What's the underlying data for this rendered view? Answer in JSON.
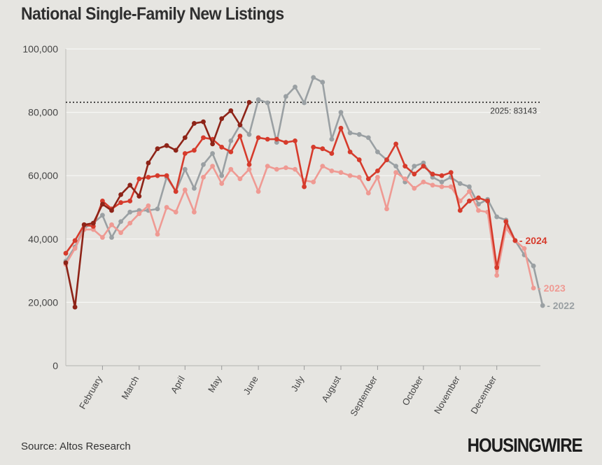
{
  "title": "National Single-Family New Listings",
  "source": "Source: Altos Research",
  "brand": "HOUSINGWIRE",
  "chart_data": {
    "type": "line",
    "title": "National Single-Family New Listings",
    "xlabel": "",
    "ylabel": "",
    "ylim": [
      0,
      100000
    ],
    "yticks": [
      0,
      20000,
      40000,
      60000,
      80000,
      100000
    ],
    "ytick_labels": [
      "0",
      "20,000",
      "40,000",
      "60,000",
      "80,000",
      "100,000"
    ],
    "week_range": [
      1,
      52
    ],
    "month_ticks": [
      {
        "label": "February",
        "week": 5
      },
      {
        "label": "March",
        "week": 9
      },
      {
        "label": "April",
        "week": 14
      },
      {
        "label": "May",
        "week": 18
      },
      {
        "label": "June",
        "week": 22
      },
      {
        "label": "July",
        "week": 27
      },
      {
        "label": "August",
        "week": 31
      },
      {
        "label": "September",
        "week": 35
      },
      {
        "label": "October",
        "week": 40
      },
      {
        "label": "November",
        "week": 44
      },
      {
        "label": "December",
        "week": 48
      }
    ],
    "grid": true,
    "reference_line": {
      "value": 83143,
      "label": "2025: 83143",
      "style": "dotted"
    },
    "series": [
      {
        "name": "2022",
        "color": "#9aa0a3",
        "label": "2022",
        "values": [
          33000,
          37500,
          43500,
          45000,
          47500,
          40500,
          45500,
          48500,
          49000,
          49000,
          49500,
          59500,
          55000,
          62000,
          56000,
          63500,
          67000,
          60000,
          71000,
          76000,
          73000,
          84000,
          83000,
          70500,
          85000,
          88000,
          83000,
          91000,
          89500,
          71500,
          80000,
          73500,
          73000,
          72000,
          67500,
          65000,
          63000,
          58000,
          63000,
          64000,
          59500,
          58000,
          59500,
          57500,
          56500,
          51000,
          52500,
          47000,
          46000,
          39500,
          35000,
          31500,
          19000
        ]
      },
      {
        "name": "2023",
        "color": "#ef9a93",
        "label": "2023",
        "values": [
          32000,
          37000,
          43000,
          43000,
          40500,
          44500,
          42000,
          45000,
          48000,
          50500,
          41500,
          50000,
          48500,
          55500,
          48500,
          59500,
          63000,
          57500,
          62000,
          59000,
          62000,
          55000,
          63000,
          62000,
          62500,
          62000,
          58500,
          58000,
          63000,
          61500,
          61000,
          60000,
          59500,
          54500,
          59500,
          49500,
          61000,
          59000,
          56000,
          58000,
          57000,
          56500,
          56500,
          52000,
          55000,
          49000,
          48500,
          28500,
          43500,
          39500,
          37000,
          24500
        ]
      },
      {
        "name": "2024",
        "color": "#d63b2c",
        "label": "2024",
        "values": [
          35500,
          39500,
          44500,
          44000,
          52000,
          49500,
          51500,
          52000,
          59000,
          59500,
          60000,
          60000,
          55000,
          67000,
          68000,
          72000,
          71500,
          69000,
          67500,
          72500,
          63500,
          72000,
          71500,
          71500,
          70500,
          71000,
          56500,
          69000,
          68500,
          67000,
          75000,
          67500,
          65000,
          59000,
          61500,
          65000,
          70000,
          63000,
          60500,
          63000,
          60500,
          60000,
          61000,
          49000,
          52000,
          53000,
          52000,
          31000,
          45500,
          39500
        ]
      },
      {
        "name": "2024 (highlighted)",
        "color": "#8e2418",
        "values": [
          32500,
          18500,
          44500,
          45000,
          51000,
          49000,
          54000,
          57000,
          53500,
          64000,
          68500,
          69500,
          68000,
          72000,
          76500,
          77000,
          70000,
          78000,
          80500,
          76000,
          83143
        ]
      }
    ]
  }
}
